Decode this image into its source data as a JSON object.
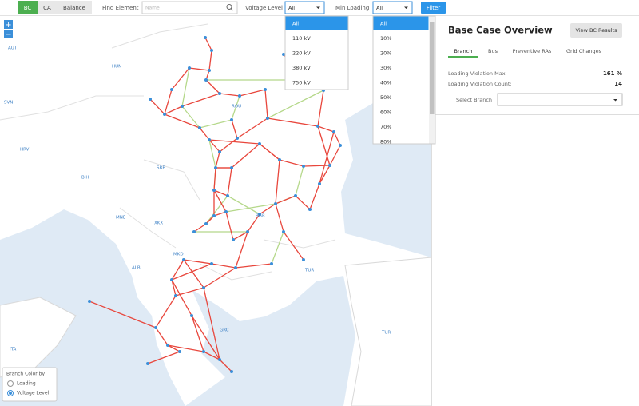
{
  "toolbar": {
    "tabs": [
      "BC",
      "CA",
      "Balance"
    ],
    "find_label": "Find Element",
    "find_placeholder": "Name",
    "voltage_label": "Voltage Level",
    "voltage_value": "All",
    "loading_label": "Min Loading",
    "loading_value": "All",
    "filter_button": "Filter"
  },
  "voltage_options": [
    "All",
    "110 kV",
    "220 kV",
    "380 kV",
    "750 kV"
  ],
  "loading_options": [
    "All",
    "10%",
    "20%",
    "30%",
    "40%",
    "50%",
    "60%",
    "70%",
    "80%"
  ],
  "map": {
    "zoom_in": "+",
    "zoom_out": "−",
    "country_labels": [
      "AUT",
      "HUN",
      "SVN",
      "HRV",
      "BIH",
      "SRB",
      "MNE",
      "XKX",
      "ROU",
      "BGR",
      "MKD",
      "ALB",
      "TUR",
      "GRC",
      "TUR",
      "ITA"
    ],
    "legend": {
      "title": "Branch Color by",
      "options": [
        "Loading",
        "Voltage Level"
      ]
    }
  },
  "panel": {
    "title": "Base Case Overview",
    "button": "View BC Results",
    "tabs": [
      "Branch",
      "Bus",
      "Preventive RAs",
      "Grid Changes"
    ],
    "stats": [
      {
        "label": "Loading Violation Max:",
        "value": "161 %"
      },
      {
        "label": "Loading Violation Count:",
        "value": "14"
      }
    ],
    "select_label": "Select Branch"
  }
}
